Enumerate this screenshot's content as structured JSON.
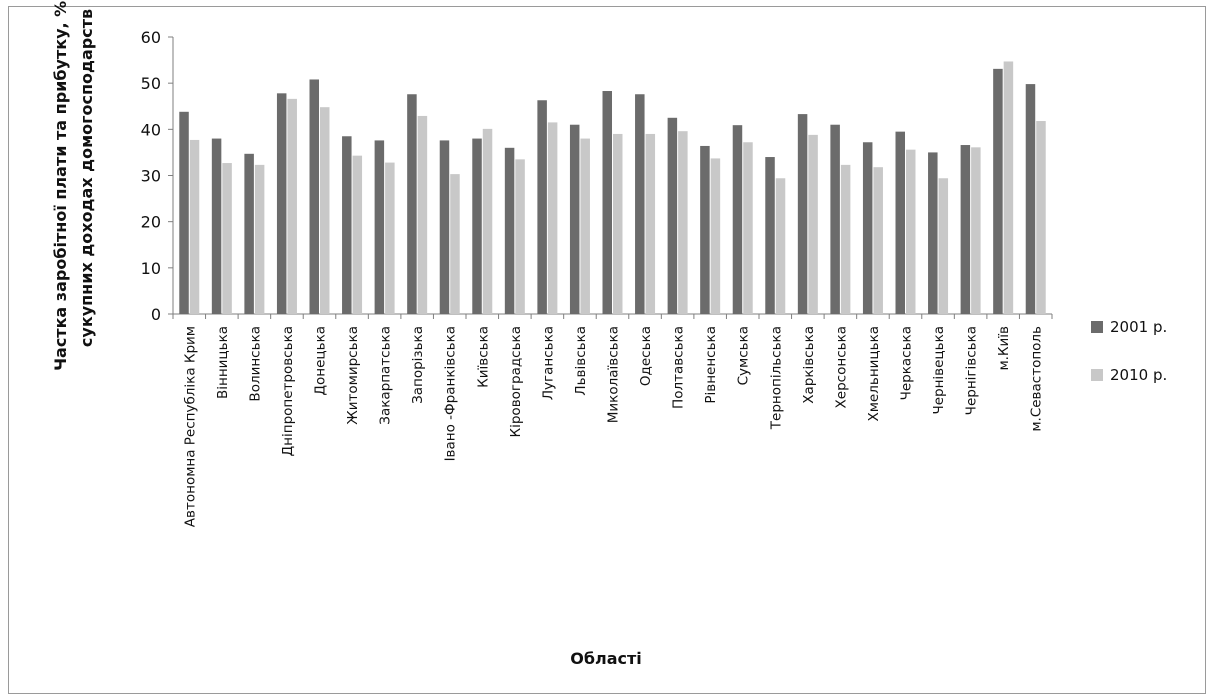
{
  "chart_data": {
    "type": "bar",
    "ylabel_line1": "Частка заробітної плати та прибутку, % в",
    "ylabel_line2": "сукупних доходах домогосподарств",
    "xlabel": "Області",
    "ylim": [
      0,
      60
    ],
    "yticks": [
      "0",
      "10",
      "20",
      "30",
      "40",
      "50",
      "60"
    ],
    "legend_position": "right",
    "categories": [
      "Автономна Республіка Крим",
      "Вінницька",
      "Волинська",
      "Дніпропетровська",
      "Донецька",
      "Житомирська",
      "Закарпатська",
      "Запорізька",
      "Івано -Франківська",
      "Київська",
      "Кіровоградська",
      "Луганська",
      "Львівська",
      "Миколаївська",
      "Одеська",
      "Полтавська",
      "Рівненська",
      "Сумська",
      "Тернопільська",
      "Харківська",
      "Херсонська",
      "Хмельницька",
      "Черкаська",
      "Чернівецька",
      "Чернігівська",
      "м.Київ",
      "м.Севастополь"
    ],
    "series": [
      {
        "name": "2001 р.",
        "color": "#6b6b6b",
        "values": [
          43.8,
          38.0,
          34.7,
          47.8,
          50.8,
          38.5,
          37.6,
          47.6,
          37.6,
          38.0,
          36.0,
          46.3,
          41.0,
          48.3,
          47.6,
          42.5,
          36.4,
          40.9,
          34.0,
          43.3,
          41.0,
          37.2,
          39.5,
          35.0,
          36.6,
          53.1,
          49.8
        ]
      },
      {
        "name": "2010 р.",
        "color": "#c8c8c8",
        "values": [
          37.7,
          32.7,
          32.3,
          46.6,
          44.8,
          34.3,
          32.8,
          42.9,
          30.3,
          40.1,
          33.5,
          41.5,
          38.0,
          39.0,
          39.0,
          39.6,
          33.7,
          37.2,
          29.4,
          38.8,
          32.3,
          31.8,
          35.6,
          29.4,
          36.1,
          54.7,
          41.8
        ]
      }
    ]
  }
}
